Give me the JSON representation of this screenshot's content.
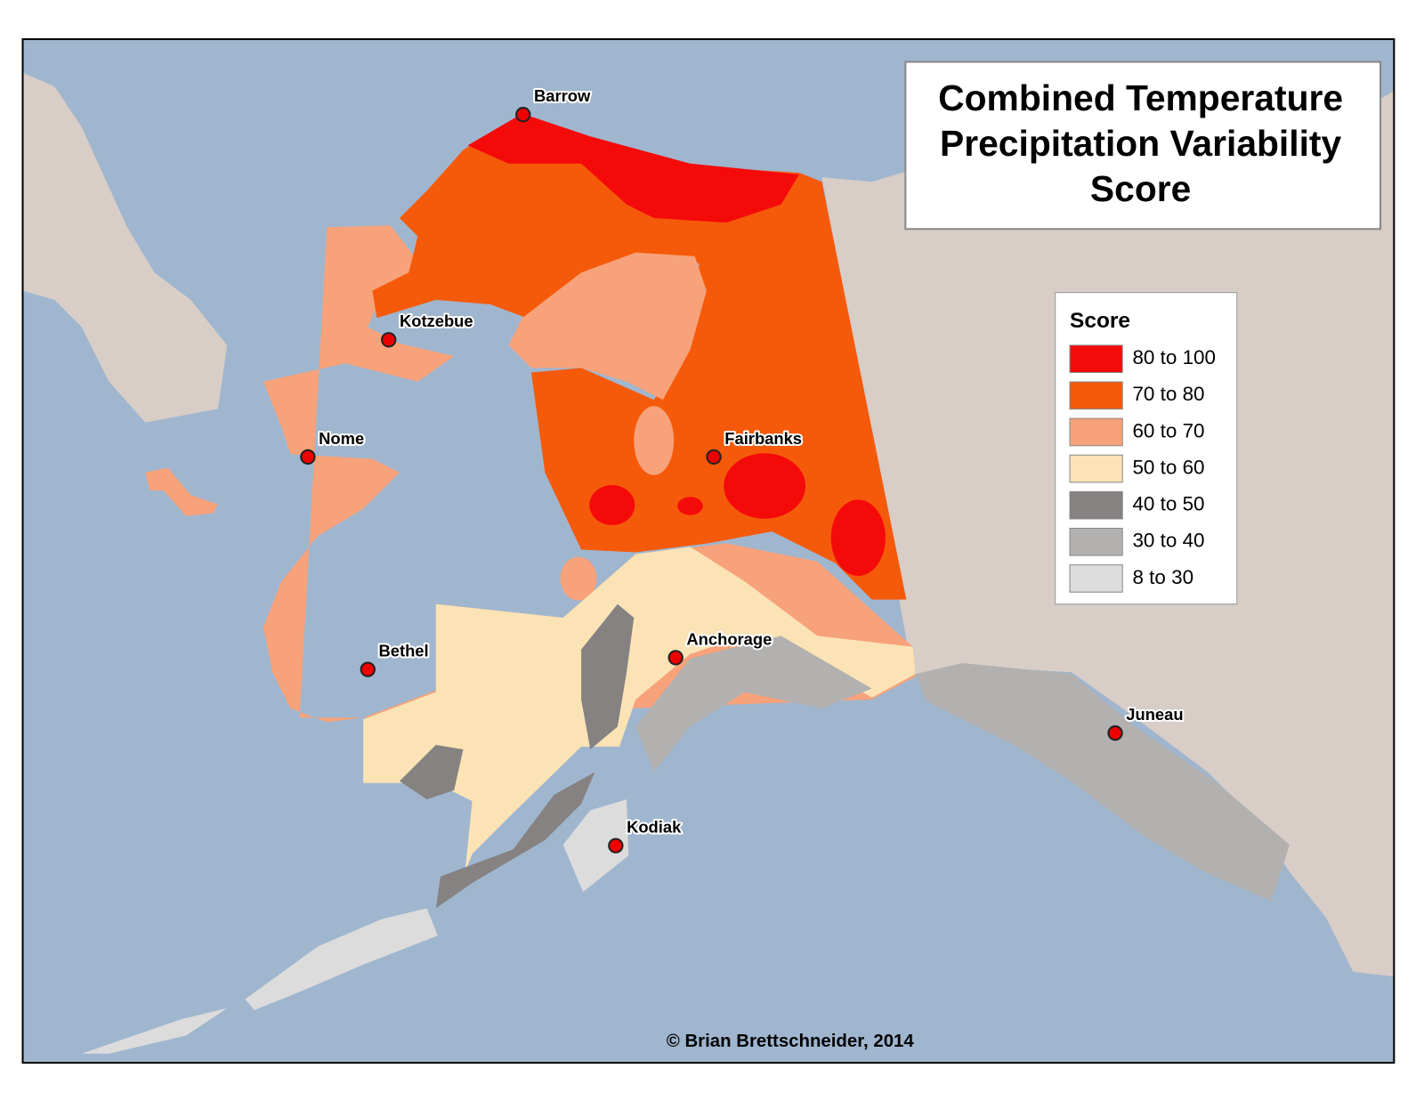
{
  "title_lines": [
    "Combined Temperature",
    "Precipitation Variability",
    "Score"
  ],
  "legend": {
    "title": "Score",
    "items": [
      {
        "label": "80 to 100",
        "color": "#f50a0a"
      },
      {
        "label": "70 to 80",
        "color": "#f55a0a"
      },
      {
        "label": "60 to 70",
        "color": "#f7a27a"
      },
      {
        "label": "50 to 60",
        "color": "#fbe3b6"
      },
      {
        "label": "40 to 50",
        "color": "#858281"
      },
      {
        "label": "30 to 40",
        "color": "#b2b1b0"
      },
      {
        "label": "8 to 30",
        "color": "#dcdcdc"
      }
    ]
  },
  "cities": [
    "Barrow",
    "Kotzebue",
    "Nome",
    "Fairbanks",
    "Bethel",
    "Anchorage",
    "Juneau",
    "Kodiak"
  ],
  "credit": "© Brian Brettschneider, 2014"
}
